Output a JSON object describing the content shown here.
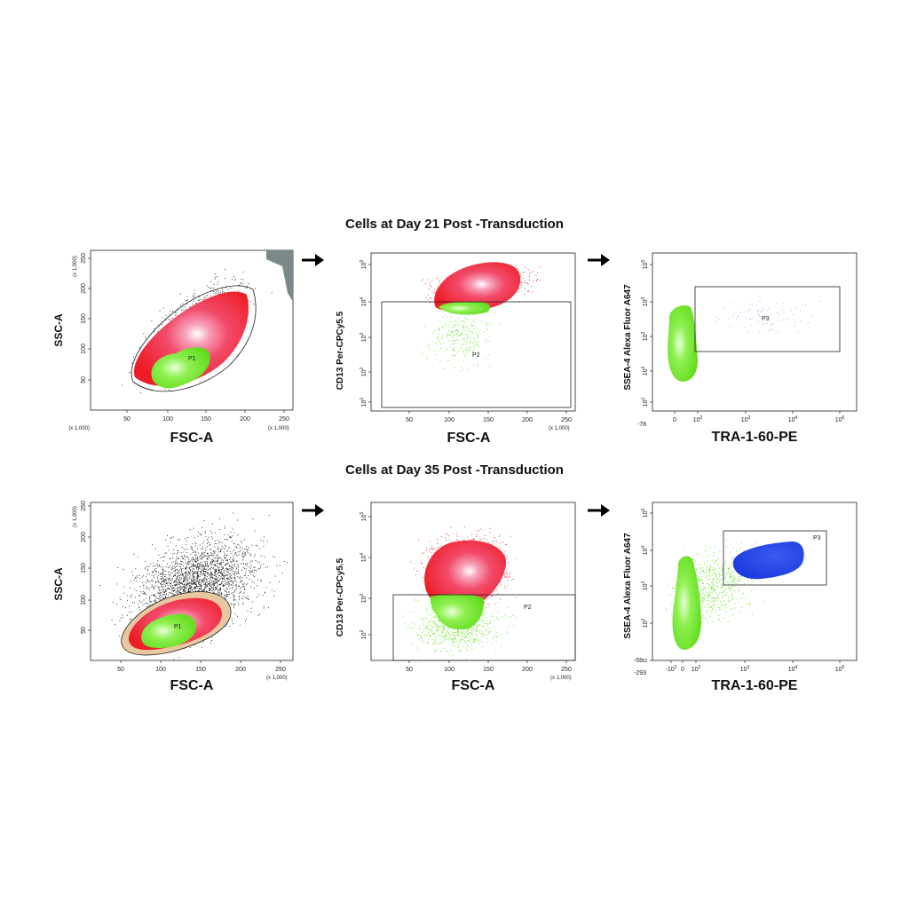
{
  "figure": {
    "row1_title": "Cells at Day 21 Post -Transduction",
    "row2_title": "Cells at Day 35 Post -Transduction"
  },
  "colors": {
    "density_red": "#ee1c24",
    "density_pink": "#f7a0b8",
    "gate_green": "#66e022",
    "p3_blue": "#1a3ee0",
    "events_black": "#111111"
  },
  "chart_data": [
    {
      "type": "scatter",
      "row": 1,
      "xlabel": "FSC-A",
      "ylabel": "SSC-A",
      "x_multiplier": "(x 1,000)",
      "y_multiplier": "(x 1,000)",
      "xticks": [
        "50",
        "100",
        "150",
        "200",
        "250"
      ],
      "yticks": [
        "50",
        "100",
        "150",
        "200",
        "250"
      ],
      "xlim": [
        0,
        262
      ],
      "ylim": [
        0,
        262
      ],
      "gates": [
        {
          "name": "P1"
        }
      ]
    },
    {
      "type": "scatter",
      "row": 1,
      "xlabel": "FSC-A",
      "ylabel": "CD13 Per-CPCy5.5",
      "x_multiplier": "(x 1,000)",
      "xticks": [
        "50",
        "100",
        "150",
        "200",
        "250"
      ],
      "yticks": [
        "10^1",
        "10^2",
        "10^3",
        "10^4",
        "10^5"
      ],
      "xlim": [
        0,
        262
      ],
      "ylog": true,
      "gates": [
        {
          "name": "P2"
        }
      ]
    },
    {
      "type": "scatter",
      "row": 1,
      "xlabel": "TRA-1-60-PE",
      "ylabel": "SSEA-4 Alexa Fluor A647",
      "xticks": [
        "0",
        "10^2",
        "10^3",
        "10^4",
        "10^5"
      ],
      "x_origin_label": "-78",
      "yticks": [
        "10^1",
        "10^2",
        "10^3",
        "10^4",
        "10^5"
      ],
      "xlog": true,
      "ylog": true,
      "gates": [
        {
          "name": "P3"
        }
      ]
    },
    {
      "type": "scatter",
      "row": 2,
      "xlabel": "FSC-A",
      "ylabel": "SSC-A",
      "x_multiplier": "(x 1,000)",
      "y_multiplier": "(x 1,000)",
      "xticks": [
        "50",
        "100",
        "150",
        "200",
        "250"
      ],
      "yticks": [
        "50",
        "100",
        "150",
        "200",
        "250"
      ],
      "xlim": [
        0,
        262
      ],
      "ylim": [
        0,
        262
      ],
      "gates": [
        {
          "name": "P1"
        }
      ]
    },
    {
      "type": "scatter",
      "row": 2,
      "xlabel": "FSC-A",
      "ylabel": "CD13 Per-CPCy5.5",
      "x_multiplier": "(x 1,000)",
      "xticks": [
        "50",
        "100",
        "150",
        "200",
        "250"
      ],
      "yticks": [
        "10^2",
        "10^3",
        "10^4",
        "10^5"
      ],
      "xlim": [
        0,
        262
      ],
      "ylog": true,
      "gates": [
        {
          "name": "P2"
        }
      ]
    },
    {
      "type": "scatter",
      "row": 2,
      "xlabel": "TRA-1-60-PE",
      "ylabel": "SSEA-4 Alexa Fluor A647",
      "xticks": [
        "-10^2",
        "0",
        "10^2",
        "10^3",
        "10^4",
        "10^5"
      ],
      "x_origin_label": "-293",
      "y_origin_label": "-58",
      "yticks": [
        "0",
        "10^2",
        "10^3",
        "10^4",
        "10^5"
      ],
      "xlog": true,
      "ylog": true,
      "gates": [
        {
          "name": "P3"
        }
      ]
    }
  ]
}
